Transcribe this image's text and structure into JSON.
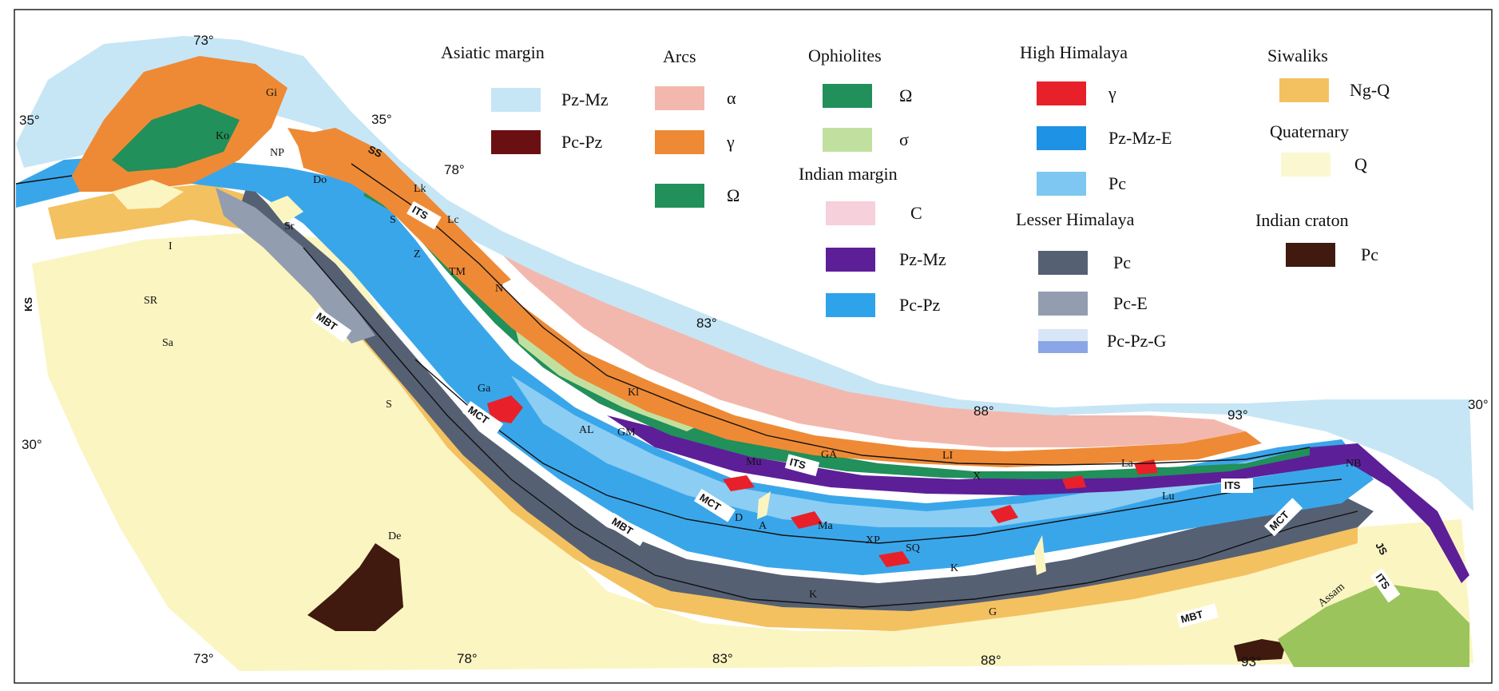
{
  "legend": {
    "groups": [
      {
        "title": "Asiatic margin",
        "items": [
          {
            "label": "Pz-Mz",
            "color": "#c6e6f6"
          },
          {
            "label": "Pc-Pz",
            "color": "#6b1012"
          }
        ]
      },
      {
        "title": "Arcs",
        "items": [
          {
            "label": "α",
            "color": "#f3b8ad"
          },
          {
            "label": "γ",
            "color": "#ee8a35"
          },
          {
            "label": "Ω",
            "color": "#21905a"
          }
        ]
      },
      {
        "title": "Ophiolites",
        "items": [
          {
            "label": "Ω",
            "color": "#21905a"
          },
          {
            "label": "σ",
            "color": "#c1e0a0"
          }
        ]
      },
      {
        "title": "Indian margin",
        "items": [
          {
            "label": "C",
            "color": "#f6d0da"
          },
          {
            "label": "Pz-Mz",
            "color": "#5d1f98"
          },
          {
            "label": "Pc-Pz",
            "color": "#2ea3ea"
          }
        ]
      },
      {
        "title": "High Himalaya",
        "items": [
          {
            "label": "γ",
            "color": "#e8202a"
          },
          {
            "label": "Pz-Mz-E",
            "color": "#1e92e4"
          },
          {
            "label": "Pc",
            "color": "#7ec7f2"
          }
        ]
      },
      {
        "title": "Lesser Himalaya",
        "items": [
          {
            "label": "Pc",
            "color": "#556073"
          },
          {
            "label": "Pc-E",
            "color": "#929db0"
          },
          {
            "label": "Pc-Pz-G",
            "color": "#c9dcf3"
          }
        ]
      },
      {
        "title": "Siwaliks",
        "items": [
          {
            "label": "Ng-Q",
            "color": "#f4c160"
          }
        ]
      },
      {
        "title": "Quaternary",
        "items": [
          {
            "label": "Q",
            "color": "#fbf8d1"
          }
        ]
      },
      {
        "title": "Indian craton",
        "items": [
          {
            "label": "Pc",
            "color": "#40190f"
          }
        ]
      }
    ]
  },
  "graticule": {
    "top_lon": [
      "73°",
      "78°",
      "83°",
      "88°",
      "93°"
    ],
    "bottom_lon": [
      "73°",
      "78°",
      "83°",
      "88°",
      "93°"
    ],
    "lat": [
      "35°",
      "35°",
      "30°",
      "30°"
    ]
  },
  "faults": [
    "MBT",
    "MBT",
    "MBT",
    "MCT",
    "MCT",
    "MCT",
    "ITS",
    "ITS",
    "ITS",
    "ITS",
    "KS",
    "JS",
    "SS"
  ],
  "place_labels": [
    "Gi",
    "Ko",
    "NP",
    "Do",
    "Lk",
    "Lc",
    "Sr",
    "S",
    "Z",
    "TM",
    "SR",
    "Sa",
    "Ga",
    "AL",
    "GM",
    "Kl",
    "Mu",
    "GA",
    "LI",
    "X",
    "La",
    "Lu",
    "NB",
    "D",
    "A",
    "Ma",
    "XP",
    "SQ",
    "K",
    "K",
    "G",
    "De",
    "S",
    "Assam",
    "I",
    "N"
  ]
}
